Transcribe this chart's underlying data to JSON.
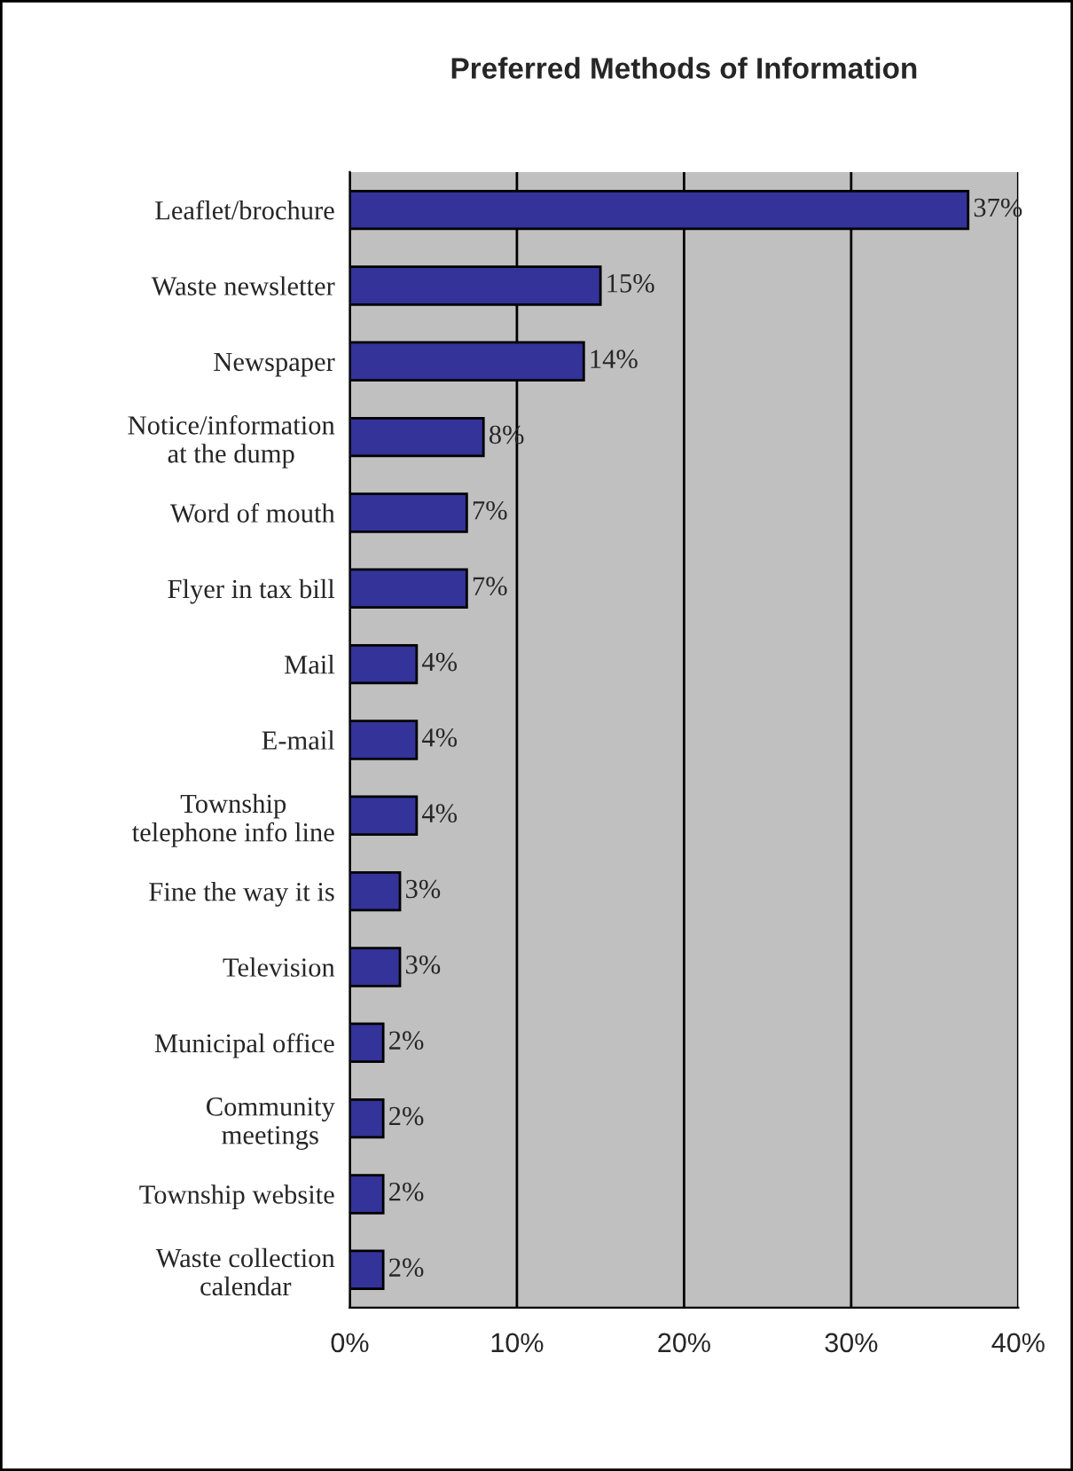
{
  "chart_data": {
    "type": "bar",
    "orientation": "horizontal",
    "title": "Preferred Methods of Information",
    "categories": [
      "Leaflet/brochure",
      "Waste newsletter",
      "Newspaper",
      "Notice/information\nat the dump",
      "Word of mouth",
      "Flyer in tax bill",
      "Mail",
      "E-mail",
      "Township\ntelephone info line",
      "Fine the way it is",
      "Television",
      "Municipal office",
      "Community\nmeetings",
      "Township website",
      "Waste collection\ncalendar"
    ],
    "values": [
      37,
      15,
      14,
      8,
      7,
      7,
      4,
      4,
      4,
      3,
      3,
      2,
      2,
      2,
      2
    ],
    "value_labels": [
      "37%",
      "15%",
      "14%",
      "8%",
      "7%",
      "7%",
      "4%",
      "4%",
      "4%",
      "3%",
      "3%",
      "2%",
      "2%",
      "2%",
      "2%"
    ],
    "color": "#333399",
    "xlim": [
      0,
      40
    ],
    "xticks": [
      {
        "value": 0,
        "label": "0%"
      },
      {
        "value": 10,
        "label": "10%"
      },
      {
        "value": 20,
        "label": "20%"
      },
      {
        "value": 30,
        "label": "30%"
      },
      {
        "value": 40,
        "label": "40%"
      }
    ],
    "grid": "x"
  }
}
